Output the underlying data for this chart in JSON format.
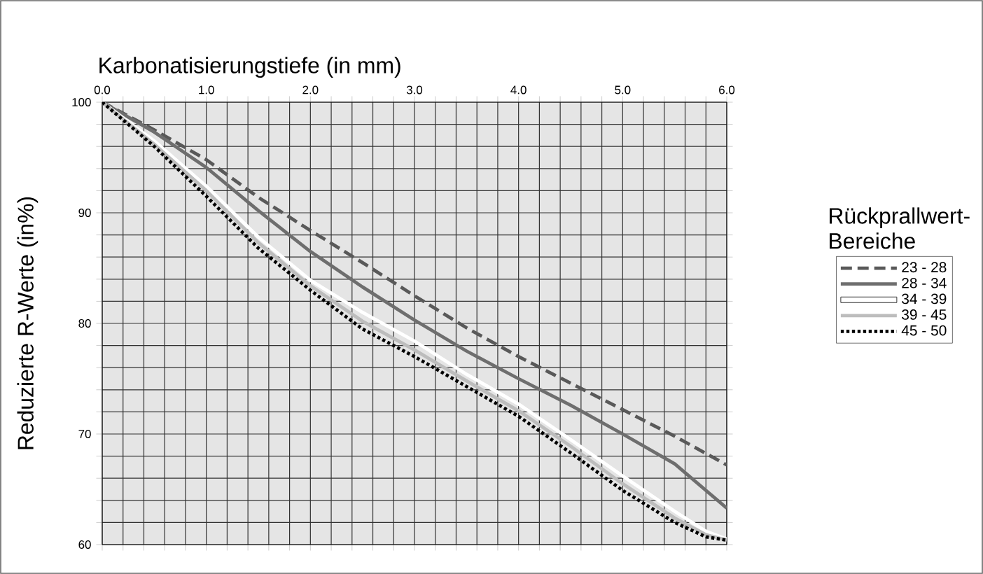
{
  "chart_data": {
    "type": "line",
    "xlabel": "Karbonatisierungstiefe (in mm)",
    "ylabel": "Reduzierte R-Werte (in%)",
    "legend_title": "Rückprallwert-Bereiche",
    "legend": "right",
    "grid": true,
    "marker": "none",
    "xlim": [
      0,
      6
    ],
    "ylim": [
      60,
      100
    ],
    "xticks": [
      {
        "value": 0,
        "label": "0.0"
      },
      {
        "value": 0.2,
        "label": null
      },
      {
        "value": 0.4,
        "label": null
      },
      {
        "value": 0.6,
        "label": null
      },
      {
        "value": 0.8,
        "label": null
      },
      {
        "value": 1,
        "label": "1.0"
      },
      {
        "value": 1.2,
        "label": null
      },
      {
        "value": 1.4,
        "label": null
      },
      {
        "value": 1.6,
        "label": null
      },
      {
        "value": 1.8,
        "label": null
      },
      {
        "value": 2,
        "label": "2.0"
      },
      {
        "value": 2.2,
        "label": null
      },
      {
        "value": 2.4,
        "label": null
      },
      {
        "value": 2.6,
        "label": null
      },
      {
        "value": 2.8,
        "label": null
      },
      {
        "value": 3,
        "label": "3.0"
      },
      {
        "value": 3.2,
        "label": null
      },
      {
        "value": 3.4,
        "label": null
      },
      {
        "value": 3.6,
        "label": null
      },
      {
        "value": 3.8,
        "label": null
      },
      {
        "value": 4,
        "label": "4.0"
      },
      {
        "value": 4.2,
        "label": null
      },
      {
        "value": 4.4,
        "label": null
      },
      {
        "value": 4.6,
        "label": null
      },
      {
        "value": 4.8,
        "label": null
      },
      {
        "value": 5,
        "label": "5.0"
      },
      {
        "value": 5.2,
        "label": null
      },
      {
        "value": 5.4,
        "label": null
      },
      {
        "value": 5.6,
        "label": null
      },
      {
        "value": 5.8,
        "label": null
      },
      {
        "value": 6,
        "label": "6.0"
      }
    ],
    "yticks": [
      60,
      {
        "value": 62,
        "label": null
      },
      {
        "value": 64,
        "label": null
      },
      {
        "value": 66,
        "label": null
      },
      {
        "value": 68,
        "label": null
      },
      70,
      {
        "value": 72,
        "label": null
      },
      {
        "value": 74,
        "label": null
      },
      {
        "value": 76,
        "label": null
      },
      {
        "value": 78,
        "label": null
      },
      80,
      {
        "value": 82,
        "label": null
      },
      {
        "value": 84,
        "label": null
      },
      {
        "value": 86,
        "label": null
      },
      {
        "value": 88,
        "label": null
      },
      90,
      {
        "value": 92,
        "label": null
      },
      {
        "value": 94,
        "label": null
      },
      {
        "value": 96,
        "label": null
      },
      {
        "value": 98,
        "label": null
      },
      100
    ],
    "series": [
      {
        "name": "23 - 28",
        "color": "#595959",
        "line_style": "dashed",
        "x": [
          0,
          0.5,
          1,
          1.5,
          2,
          2.5,
          3,
          3.5,
          4,
          4.5,
          5,
          5.5,
          6
        ],
        "values": [
          100,
          97.5,
          94.8,
          91.4,
          88.4,
          85.5,
          82.5,
          79.6,
          77,
          74.6,
          72.2,
          69.8,
          67.2
        ]
      },
      {
        "name": "28 - 34",
        "color": "#6e6e6e",
        "line_style": "solid",
        "x": [
          0,
          0.5,
          1,
          1.5,
          2,
          2.5,
          3,
          3.5,
          4,
          4.5,
          5,
          5.5,
          6
        ],
        "values": [
          100,
          97.3,
          94.1,
          90.2,
          86.5,
          83.3,
          80.3,
          77.5,
          75,
          72.6,
          70,
          67.3,
          63.3
        ]
      },
      {
        "name": "34 - 39",
        "color": "#ffffff",
        "line_style": "solid",
        "x": [
          0,
          0.5,
          1,
          1.5,
          2,
          2.5,
          3,
          3.5,
          4,
          4.5,
          5,
          5.5,
          5.8,
          6
        ],
        "values": [
          100,
          96.5,
          92.4,
          87.8,
          83.9,
          81,
          78.4,
          75.4,
          72.7,
          69.5,
          66.2,
          63,
          61.2,
          60.5
        ]
      },
      {
        "name": "39 - 45",
        "color": "#bdbdbd",
        "line_style": "solid",
        "x": [
          0,
          0.5,
          1,
          1.5,
          2,
          2.5,
          3,
          3.5,
          4,
          4.5,
          5,
          5.5,
          5.8,
          6
        ],
        "values": [
          100,
          96.2,
          92,
          87.3,
          83.4,
          80.2,
          77.6,
          74.8,
          72.1,
          68.9,
          65.5,
          62.4,
          60.9,
          60.4
        ]
      },
      {
        "name": "45 - 50",
        "color": "#000000",
        "line_style": "dotted",
        "x": [
          0,
          0.5,
          1,
          1.5,
          2,
          2.5,
          3,
          3.5,
          4,
          4.5,
          5,
          5.5,
          5.8,
          6
        ],
        "values": [
          100,
          96,
          91.5,
          86.8,
          83,
          79.5,
          77,
          74.3,
          71.6,
          68.3,
          64.9,
          62,
          60.7,
          60.4
        ]
      }
    ]
  }
}
